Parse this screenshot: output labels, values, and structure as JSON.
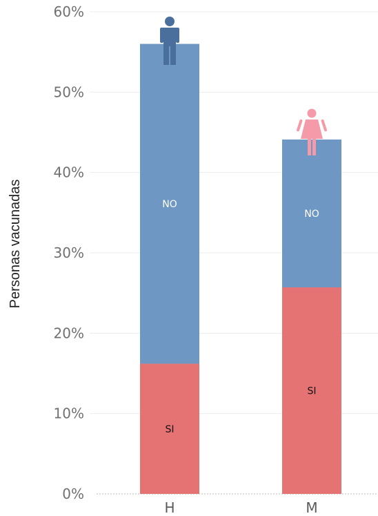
{
  "chart_data": {
    "type": "bar",
    "stacked": true,
    "ylabel": "Personas vacunadas",
    "xlabel": "",
    "ylim": [
      0,
      60
    ],
    "yticks": [
      "0%",
      "10%",
      "20%",
      "30%",
      "40%",
      "50%",
      "60%"
    ],
    "categories": [
      "H",
      "M"
    ],
    "series": [
      {
        "name": "SI",
        "values": [
          16.2,
          25.7
        ],
        "color": "#e57373"
      },
      {
        "name": "NO",
        "values": [
          39.8,
          18.4
        ],
        "color": "#6f97c3"
      }
    ],
    "category_icons": [
      {
        "icon": "male-person-icon",
        "color": "#4a6f9c"
      },
      {
        "icon": "female-person-icon",
        "color": "#f49aa8"
      }
    ],
    "grid": true,
    "legend": "none"
  }
}
